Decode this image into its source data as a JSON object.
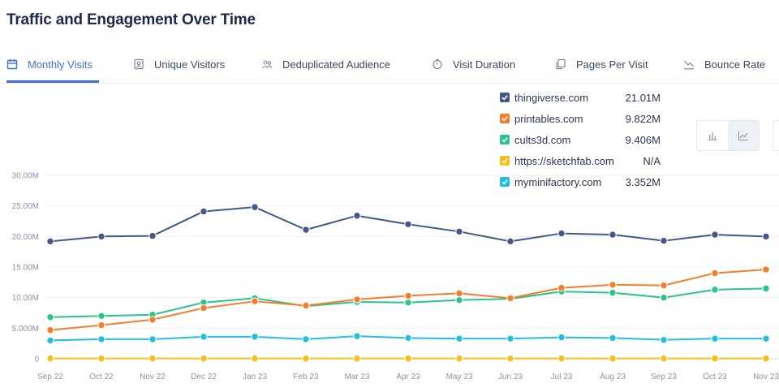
{
  "title": "Traffic and Engagement Over Time",
  "tabs": [
    {
      "label": "Monthly Visits",
      "icon": "calendar-icon",
      "active": true
    },
    {
      "label": "Unique Visitors",
      "icon": "id-card-icon",
      "active": false
    },
    {
      "label": "Deduplicated Audience",
      "icon": "users-icon",
      "active": false
    },
    {
      "label": "Visit Duration",
      "icon": "clock-icon",
      "active": false
    },
    {
      "label": "Pages Per Visit",
      "icon": "pages-icon",
      "active": false
    },
    {
      "label": "Bounce Rate",
      "icon": "trend-down-icon",
      "active": false
    }
  ],
  "colors": {
    "accent": "#3d6fe0",
    "thingiverse": "#44578b",
    "printables": "#f47f2a",
    "cults3d": "#2bc48b",
    "sketchfab": "#f8be1a",
    "myminifactory": "#22bfdd"
  },
  "chart_toggle": [
    "bar-chart-icon",
    "line-chart-icon"
  ],
  "chart_data": {
    "type": "line",
    "title": "",
    "xlabel": "",
    "ylabel": "",
    "categories": [
      "Sep 22",
      "Oct 22",
      "Nov 22",
      "Dec 22",
      "Jan 23",
      "Feb 23",
      "Mar 23",
      "Apr 23",
      "May 23",
      "Jun 23",
      "Jul 23",
      "Aug 23",
      "Sep 23",
      "Oct 23",
      "Nov 23"
    ],
    "ylim": [
      0,
      30
    ],
    "y_unit": "M",
    "y_ticks": [
      0,
      5,
      10,
      15,
      20,
      25,
      30
    ],
    "y_tick_labels": [
      "0",
      "5.000M",
      "10.00M",
      "15.00M",
      "20.00M",
      "25.00M",
      "30.00M"
    ],
    "grid": true,
    "legend_position": "top-right",
    "series": [
      {
        "name": "thingiverse.com",
        "summary": "21.01M",
        "color": "#44578b",
        "values": [
          19.2,
          20.0,
          20.1,
          24.1,
          24.8,
          21.1,
          23.4,
          22.0,
          20.8,
          19.2,
          20.5,
          20.3,
          19.3,
          20.3,
          20.0
        ]
      },
      {
        "name": "printables.com",
        "summary": "9.822M",
        "color": "#f47f2a",
        "values": [
          4.7,
          5.5,
          6.4,
          8.3,
          9.4,
          8.7,
          9.7,
          10.3,
          10.7,
          9.9,
          11.6,
          12.1,
          12.0,
          14.0,
          14.6
        ]
      },
      {
        "name": "cults3d.com",
        "summary": "9.406M",
        "color": "#2bc48b",
        "values": [
          6.8,
          7.0,
          7.2,
          9.2,
          9.9,
          8.6,
          9.3,
          9.2,
          9.6,
          9.8,
          11.0,
          10.8,
          10.0,
          11.3,
          11.5
        ]
      },
      {
        "name": "https://sketchfab.com",
        "summary": "N/A",
        "color": "#f8be1a",
        "values": [
          0.05,
          0.05,
          0.05,
          0.05,
          0.05,
          0.05,
          0.05,
          0.05,
          0.05,
          0.05,
          0.05,
          0.05,
          0.05,
          0.05,
          0.05
        ]
      },
      {
        "name": "myminifactory.com",
        "summary": "3.352M",
        "color": "#22bfdd",
        "values": [
          3.0,
          3.2,
          3.2,
          3.6,
          3.6,
          3.2,
          3.7,
          3.4,
          3.3,
          3.3,
          3.5,
          3.4,
          3.1,
          3.3,
          3.3
        ]
      }
    ]
  }
}
